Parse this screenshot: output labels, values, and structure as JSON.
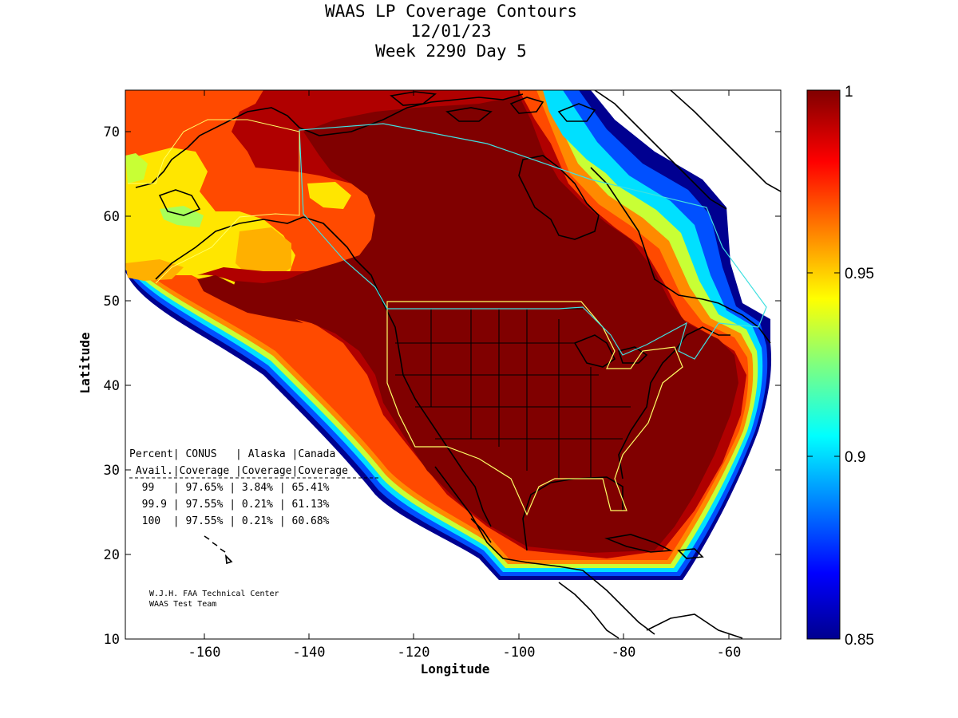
{
  "title": {
    "line1": "WAAS LP Coverage Contours",
    "line2": "12/01/23",
    "line3": "Week 2290 Day 5"
  },
  "axes": {
    "xlabel": "Longitude",
    "ylabel": "Latitude",
    "x_ticks": [
      "-160",
      "-140",
      "-120",
      "-100",
      "-80",
      "-60"
    ],
    "y_ticks": [
      "10",
      "20",
      "30",
      "40",
      "50",
      "60",
      "70"
    ],
    "xlim": [
      -175,
      -50
    ],
    "ylim": [
      10,
      75
    ]
  },
  "colorbar": {
    "ticks": [
      "1",
      "0.95",
      "0.9",
      "0.85"
    ],
    "range": [
      0.85,
      1
    ],
    "colormap": "jet"
  },
  "table": {
    "header1": "Percent| CONUS   | Alaska |Canada",
    "header2": " Avail.|Coverage |Coverage|Coverage",
    "rows": [
      "  99   | 97.65% | 3.84% | 65.41%",
      "  99.9 | 97.55% | 0.21% | 61.13%",
      "  100  | 97.55% | 0.21% | 60.68%"
    ]
  },
  "credit": {
    "line1": "W.J.H. FAA Technical Center",
    "line2": "WAAS Test Team"
  },
  "colors": {
    "full": "#800000",
    "dark_red": "#b00000",
    "red": "#ff1a00",
    "orange_red": "#ff4a00",
    "orange": "#ff8a00",
    "yellow": "#ffe600",
    "yellow_green": "#c8ff35",
    "cyan": "#00e0ff",
    "blue": "#0050ff",
    "navy": "#000090",
    "service_volume_conus": "#ffff66",
    "service_volume_canada": "#40e0e0",
    "coastline": "#000000"
  }
}
